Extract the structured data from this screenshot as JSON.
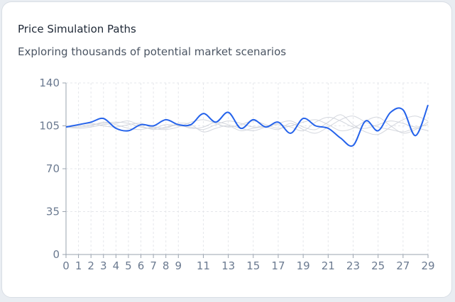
{
  "header": {
    "title": "Price Simulation Paths",
    "subtitle": "Exploring thousands of potential market scenarios"
  },
  "colors": {
    "main_line": "#2563eb",
    "scenario_line": "#cfd3da",
    "grid": "#e5e7eb",
    "axis": "#9aa3af",
    "tick_text": "#6b7a90"
  },
  "chart_data": {
    "type": "line",
    "title": "Price Simulation Paths",
    "subtitle": "Exploring thousands of potential market scenarios",
    "xlabel": "",
    "ylabel": "",
    "ylim": [
      0,
      140
    ],
    "y_ticks": [
      0,
      35,
      70,
      105,
      140
    ],
    "x_ticks": [
      0,
      1,
      2,
      3,
      4,
      5,
      6,
      7,
      8,
      9,
      11,
      13,
      15,
      17,
      19,
      21,
      23,
      25,
      27,
      29
    ],
    "xlim": [
      0,
      29
    ],
    "grid": true,
    "legend": "none",
    "series": [
      {
        "highlighted": true,
        "x": [
          0,
          1,
          2,
          3,
          4,
          5,
          6,
          7,
          8,
          9,
          10,
          11,
          12,
          13,
          14,
          15,
          16,
          17,
          18,
          19,
          20,
          21,
          22,
          23,
          24,
          25,
          26,
          27,
          28,
          29
        ],
        "values": [
          104,
          106,
          108,
          111,
          103,
          101,
          106,
          105,
          110,
          106,
          106,
          115,
          108,
          116,
          103,
          110,
          104,
          108,
          99,
          111,
          105,
          103,
          95,
          89,
          109,
          101,
          116,
          118,
          97,
          122
        ]
      },
      {
        "highlighted": false,
        "x": [
          0,
          1,
          2,
          3,
          4,
          5,
          6,
          7,
          8,
          9,
          10,
          11,
          12,
          13,
          14,
          15,
          16,
          17,
          18,
          19,
          20,
          21,
          22,
          23,
          24,
          25,
          26,
          27,
          28,
          29
        ],
        "values": [
          104,
          105,
          106,
          107,
          108,
          107,
          104,
          103,
          106,
          105,
          104,
          102,
          106,
          109,
          107,
          104,
          105,
          106,
          104,
          101,
          108,
          112,
          109,
          104,
          103,
          106,
          109,
          107,
          104,
          106
        ]
      },
      {
        "highlighted": false,
        "x": [
          0,
          1,
          2,
          3,
          4,
          5,
          6,
          7,
          8,
          9,
          10,
          11,
          12,
          13,
          14,
          15,
          16,
          17,
          18,
          19,
          20,
          21,
          22,
          23,
          24,
          25,
          26,
          27,
          28,
          29
        ],
        "values": [
          104,
          104,
          105,
          108,
          106,
          103,
          102,
          104,
          103,
          107,
          106,
          100,
          103,
          105,
          101,
          103,
          104,
          102,
          107,
          102,
          99,
          104,
          110,
          113,
          108,
          104,
          102,
          100,
          103,
          101
        ]
      },
      {
        "highlighted": false,
        "x": [
          0,
          1,
          2,
          3,
          4,
          5,
          6,
          7,
          8,
          9,
          10,
          11,
          12,
          13,
          14,
          15,
          16,
          17,
          18,
          19,
          20,
          21,
          22,
          23,
          24,
          25,
          26,
          27,
          28,
          29
        ],
        "values": [
          104,
          106,
          107,
          105,
          104,
          106,
          107,
          103,
          102,
          104,
          108,
          110,
          107,
          104,
          106,
          109,
          106,
          103,
          105,
          108,
          110,
          106,
          101,
          103,
          109,
          112,
          105,
          99,
          102,
          108
        ]
      },
      {
        "highlighted": false,
        "x": [
          0,
          1,
          2,
          3,
          4,
          5,
          6,
          7,
          8,
          9,
          10,
          11,
          12,
          13,
          14,
          15,
          16,
          17,
          18,
          19,
          20,
          21,
          22,
          23,
          24,
          25,
          26,
          27,
          28,
          29
        ],
        "values": [
          104,
          103,
          104,
          106,
          107,
          109,
          105,
          102,
          104,
          106,
          103,
          104,
          108,
          106,
          103,
          101,
          104,
          107,
          109,
          104,
          102,
          108,
          114,
          106,
          100,
          98,
          104,
          110,
          113,
          109
        ]
      }
    ]
  }
}
